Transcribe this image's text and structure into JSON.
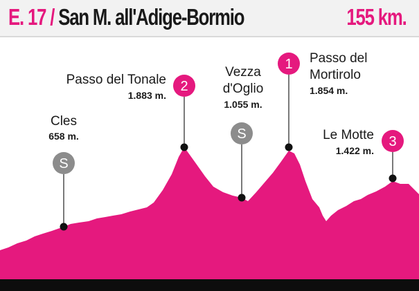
{
  "header": {
    "stage": "E. 17",
    "slash": "/",
    "route": "San M. all'Adige-Bormio",
    "distance": "155 km."
  },
  "colors": {
    "profile_fill": "#e5197e",
    "badge_climb": "#e5197e",
    "badge_sprint": "#8c8c8c",
    "marker": "#111111"
  },
  "chart_data": {
    "type": "area",
    "title": "",
    "xlabel": "",
    "ylabel": "",
    "points": [
      {
        "name": "Cles",
        "altitude": "658 m.",
        "badge": "S",
        "kind": "sprint"
      },
      {
        "name": "Passo del Tonale",
        "altitude": "1.883 m.",
        "badge": "2",
        "kind": "climb"
      },
      {
        "name": "Vezza d'Oglio",
        "name_lines": [
          "Vezza",
          "d'Oglio"
        ],
        "altitude": "1.055 m.",
        "badge": "S",
        "kind": "sprint"
      },
      {
        "name": "Passo del Mortirolo",
        "name_lines": [
          "Passo del",
          "Mortirolo"
        ],
        "altitude": "1.854 m.",
        "badge": "1",
        "kind": "climb"
      },
      {
        "name": "Le Motte",
        "altitude": "1.422 m.",
        "badge": "3",
        "kind": "climb"
      }
    ]
  }
}
